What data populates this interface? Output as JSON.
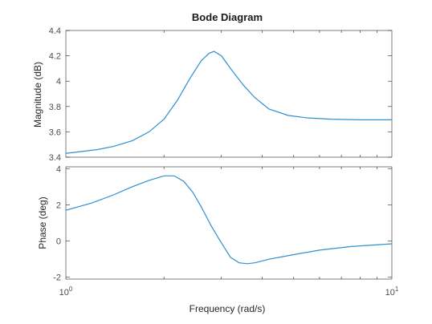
{
  "chart_data": {
    "type": "line",
    "title": "Bode Diagram",
    "xlabel": "Frequency  (rad/s)",
    "xscale": "log",
    "xlim": [
      1,
      10
    ],
    "x_ticks": [
      {
        "base": "10",
        "exp": "0"
      },
      {
        "base": "10",
        "exp": "1"
      }
    ],
    "line_color": "#2f8fd0",
    "grid": false,
    "panels": [
      {
        "ylabel": "Magnitude (dB)",
        "ylim": [
          3.4,
          4.4
        ],
        "y_ticks": [
          "3.4",
          "3.6",
          "3.8",
          "4",
          "4.2",
          "4.4"
        ],
        "y_tick_values": [
          3.4,
          3.6,
          3.8,
          4.0,
          4.2,
          4.4
        ],
        "x": [
          1.0,
          1.25,
          1.4,
          1.6,
          1.8,
          2.0,
          2.2,
          2.4,
          2.6,
          2.75,
          2.85,
          3.0,
          3.2,
          3.5,
          3.8,
          4.2,
          4.8,
          5.5,
          6.5,
          8.0,
          10.0
        ],
        "y": [
          3.43,
          3.46,
          3.485,
          3.53,
          3.6,
          3.7,
          3.85,
          4.02,
          4.16,
          4.22,
          4.235,
          4.2,
          4.1,
          3.97,
          3.87,
          3.78,
          3.73,
          3.71,
          3.7,
          3.695,
          3.695
        ]
      },
      {
        "ylabel": "Phase (deg)",
        "ylim": [
          -2.1,
          4.1
        ],
        "y_ticks": [
          "-2",
          "0",
          "2",
          "4"
        ],
        "y_tick_values": [
          -2,
          0,
          2,
          4
        ],
        "x": [
          1.0,
          1.2,
          1.4,
          1.6,
          1.8,
          2.0,
          2.15,
          2.3,
          2.45,
          2.6,
          2.8,
          3.0,
          3.2,
          3.4,
          3.6,
          3.8,
          4.2,
          5.0,
          6.0,
          7.5,
          10.0
        ],
        "y": [
          1.7,
          2.1,
          2.55,
          3.0,
          3.35,
          3.6,
          3.6,
          3.3,
          2.7,
          1.9,
          0.8,
          -0.1,
          -0.9,
          -1.2,
          -1.25,
          -1.2,
          -1.0,
          -0.75,
          -0.5,
          -0.3,
          -0.15
        ]
      }
    ]
  }
}
